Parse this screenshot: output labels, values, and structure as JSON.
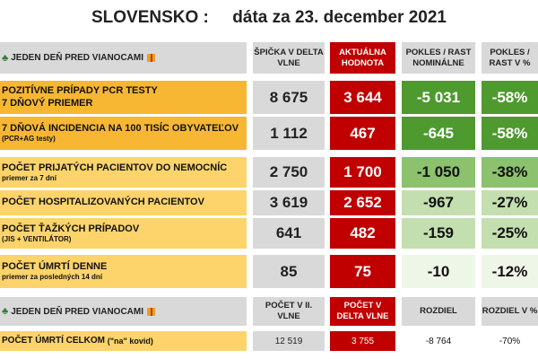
{
  "title": {
    "country": "SLOVENSKO :",
    "date_text": "dáta za 23. december 2021"
  },
  "section1": {
    "label": "JEDEN DEŇ PRED VIANOCAMI",
    "col_peak": "ŠPIČKA V DELTA VLNE",
    "col_current": "AKTUÁLNA HODNOTA",
    "col_nominal": "POKLES / RAST NOMINÁLNE",
    "col_pct": "POKLES / RAST V %"
  },
  "rows": [
    {
      "label": "POZITÍVNE PRÍPADY PCR TESTY",
      "sub": "7 DŇOVÝ PRIEMER",
      "peak": "8 675",
      "current": "3 644",
      "nominal": "-5 031",
      "pct": "-58%"
    },
    {
      "label": "7 DŇOVÁ INCIDENCIA NA 100 TISÍC OBYVATEĽOV",
      "sub": "(PCR+AG testy)",
      "peak": "1 112",
      "current": "467",
      "nominal": "-645",
      "pct": "-58%"
    },
    {
      "label": "POČET PRIJATÝCH PACIENTOV DO NEMOCNÍC",
      "sub": "priemer za 7 dní",
      "peak": "2 750",
      "current": "1 700",
      "nominal": "-1 050",
      "pct": "-38%"
    },
    {
      "label": "POČET HOSPITALIZOVANÝCH PACIENTOV",
      "sub": "",
      "peak": "3 619",
      "current": "2 652",
      "nominal": "-967",
      "pct": "-27%"
    },
    {
      "label": "POČET ŤAŽKÝCH PRÍPADOV",
      "sub": "(JIS + VENTILÁTOR)",
      "peak": "641",
      "current": "482",
      "nominal": "-159",
      "pct": "-25%"
    },
    {
      "label": "POČET ÚMRTÍ DENNE",
      "sub": "priemer za posledných 14 dní",
      "peak": "85",
      "current": "75",
      "nominal": "-10",
      "pct": "-12%"
    }
  ],
  "section2": {
    "label": "JEDEN DEŇ PRED VIANOCAMI",
    "col_wave2": "POČET V II. VLNE",
    "col_delta": "POČET V DELTA VLNE",
    "col_diff": "ROZDIEL",
    "col_diff_pct": "ROZDIEL V %"
  },
  "total_row": {
    "label": "POČET ÚMRTÍ CELKOM",
    "label_suffix": "(\"na\" kovid)",
    "wave2": "12 519",
    "delta": "3 755",
    "diff": "-8 764",
    "diff_pct": "-70%"
  },
  "colors": {
    "orange": "#f7b733",
    "red": "#c00000",
    "grey": "#d9d9d9",
    "green_dark": "#4e9a2f",
    "green_light": "#c3dfaf"
  },
  "icons": {
    "tree": "christmas-tree-icon",
    "gift": "gift-icon"
  }
}
